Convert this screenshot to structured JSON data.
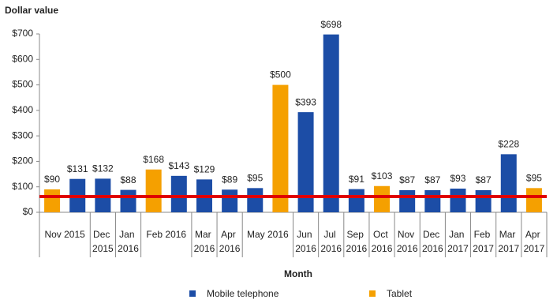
{
  "chart_data": {
    "type": "bar",
    "y_axis_title": "Dollar value",
    "x_axis_title": "Month",
    "categories": [
      "Nov 2015",
      null,
      "Dec 2015",
      "Jan 2016",
      "Feb 2016",
      null,
      "Mar 2016",
      "Apr 2016",
      "May 2016",
      null,
      "Jun 2016",
      "Jul 2016",
      "Sep 2016",
      "Oct 2016",
      "Nov 2016",
      "Dec 2016",
      "Jan 2017",
      "Feb 2017",
      "Mar 2017",
      "Apr 2017"
    ],
    "series": [
      {
        "name": "Mobile telephone",
        "color": "#1c4da6",
        "values": [
          null,
          131,
          132,
          88,
          null,
          143,
          129,
          89,
          95,
          null,
          393,
          698,
          91,
          null,
          87,
          87,
          93,
          87,
          228,
          null
        ],
        "value_labels": [
          null,
          "$131",
          "$132",
          "$88",
          null,
          "$143",
          "$129",
          "$89",
          "$95",
          null,
          "$393",
          "$698",
          "$91",
          null,
          "$87",
          "$87",
          "$93",
          "$87",
          "$228",
          null
        ]
      },
      {
        "name": "Tablet",
        "color": "#f5a000",
        "values": [
          90,
          null,
          null,
          null,
          168,
          null,
          null,
          null,
          null,
          500,
          null,
          null,
          null,
          103,
          null,
          null,
          null,
          null,
          null,
          95
        ],
        "value_labels": [
          "$90",
          null,
          null,
          null,
          "$168",
          null,
          null,
          null,
          null,
          "$500",
          null,
          null,
          null,
          "$103",
          null,
          null,
          null,
          null,
          null,
          "$95"
        ]
      }
    ],
    "ylim": [
      0,
      700
    ],
    "yticks": [
      {
        "value": 0,
        "label": "$0"
      },
      {
        "value": 100,
        "label": "$100"
      },
      {
        "value": 200,
        "label": "$200"
      },
      {
        "value": 300,
        "label": "$300"
      },
      {
        "value": 400,
        "label": "$400"
      },
      {
        "value": 500,
        "label": "$500"
      },
      {
        "value": 600,
        "label": "$600"
      },
      {
        "value": 700,
        "label": "$700"
      }
    ],
    "grid": false,
    "reference_line": {
      "value": 62,
      "color": "#e00000"
    },
    "legend": "bottom"
  }
}
